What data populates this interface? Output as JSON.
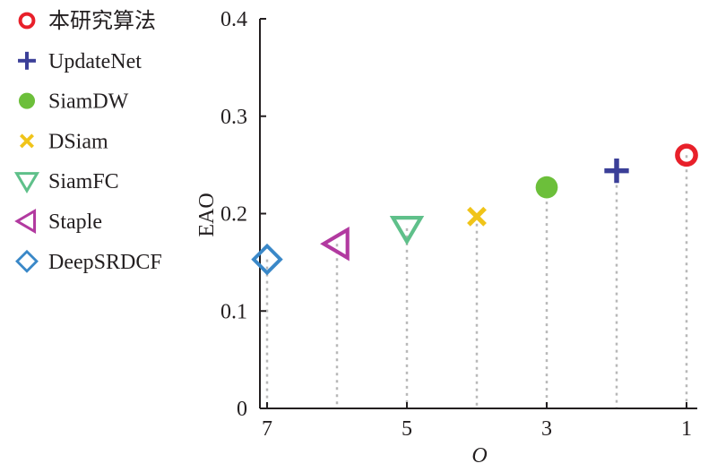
{
  "chart_data": {
    "type": "scatter",
    "xlabel": "O",
    "ylabel": "EAO",
    "xlim": [
      7,
      1
    ],
    "ylim": [
      0,
      0.4
    ],
    "x_ticks": [
      "7",
      "5",
      "3",
      "1"
    ],
    "y_ticks": [
      "0",
      "0.1",
      "0.2",
      "0.3",
      "0.4"
    ],
    "grid": false,
    "drop_lines": true,
    "legend_position": "left",
    "series": [
      {
        "name": "本研究算法",
        "x": 1,
        "y": 0.26,
        "marker": "circle-open",
        "color": "#e8202a"
      },
      {
        "name": "UpdateNet",
        "x": 2,
        "y": 0.244,
        "marker": "plus",
        "color": "#3b3f98"
      },
      {
        "name": "SiamDW",
        "x": 3,
        "y": 0.227,
        "marker": "circle-filled",
        "color": "#6cbf3a"
      },
      {
        "name": "DSiam",
        "x": 4,
        "y": 0.197,
        "marker": "x",
        "color": "#f0c419"
      },
      {
        "name": "SiamFC",
        "x": 5,
        "y": 0.185,
        "marker": "triangle-down",
        "color": "#5fc08a"
      },
      {
        "name": "Staple",
        "x": 6,
        "y": 0.169,
        "marker": "triangle-left",
        "color": "#b23aa0"
      },
      {
        "name": "DeepSRDCF",
        "x": 7,
        "y": 0.153,
        "marker": "diamond",
        "color": "#3a88c8"
      }
    ]
  }
}
